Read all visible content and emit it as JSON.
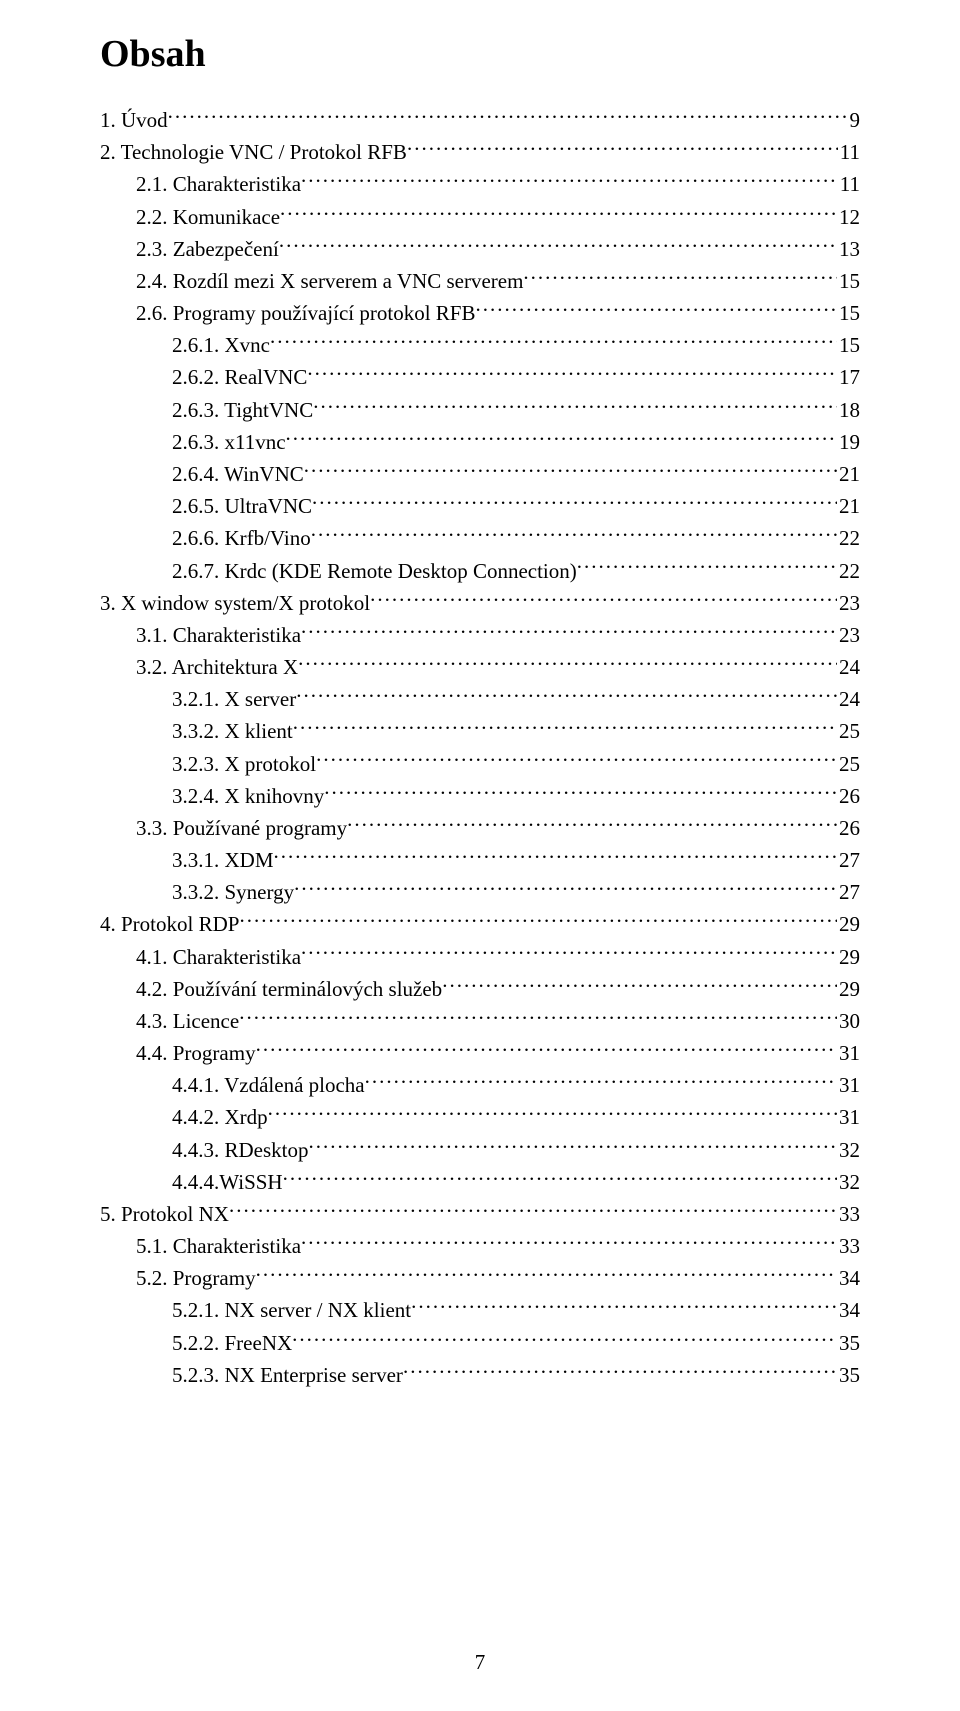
{
  "title": "Obsah",
  "footer_page_number": "7",
  "toc": [
    {
      "indent": 0,
      "label": "1. Úvod",
      "page": "9"
    },
    {
      "indent": 0,
      "label": "2. Technologie VNC / Protokol RFB",
      "page": "11"
    },
    {
      "indent": 1,
      "label": "2.1. Charakteristika",
      "page": "11"
    },
    {
      "indent": 1,
      "label": "2.2. Komunikace",
      "page": "12"
    },
    {
      "indent": 1,
      "label": "2.3. Zabezpečení",
      "page": "13"
    },
    {
      "indent": 1,
      "label": "2.4. Rozdíl mezi X serverem a VNC serverem",
      "page": "15"
    },
    {
      "indent": 1,
      "label": "2.6. Programy používající protokol RFB",
      "page": "15"
    },
    {
      "indent": 2,
      "label": "2.6.1. Xvnc",
      "page": "15"
    },
    {
      "indent": 2,
      "label": "2.6.2. RealVNC",
      "page": "17"
    },
    {
      "indent": 2,
      "label": "2.6.3. TightVNC",
      "page": "18"
    },
    {
      "indent": 2,
      "label": "2.6.3. x11vnc",
      "page": "19"
    },
    {
      "indent": 2,
      "label": "2.6.4. WinVNC",
      "page": "21"
    },
    {
      "indent": 2,
      "label": "2.6.5. UltraVNC",
      "page": "21"
    },
    {
      "indent": 2,
      "label": "2.6.6. Krfb/Vino",
      "page": "22"
    },
    {
      "indent": 2,
      "label": "2.6.7. Krdc (KDE Remote Desktop Connection)",
      "page": "22"
    },
    {
      "indent": 0,
      "label": "3. X window system/X protokol",
      "page": "23"
    },
    {
      "indent": 1,
      "label": "3.1. Charakteristika",
      "page": "23"
    },
    {
      "indent": 1,
      "label": "3.2. Architektura X",
      "page": "24"
    },
    {
      "indent": 2,
      "label": "3.2.1. X server",
      "page": "24"
    },
    {
      "indent": 2,
      "label": "3.3.2. X klient",
      "page": "25"
    },
    {
      "indent": 2,
      "label": "3.2.3. X protokol",
      "page": "25"
    },
    {
      "indent": 2,
      "label": "3.2.4. X knihovny",
      "page": "26"
    },
    {
      "indent": 1,
      "label": "3.3. Používané programy",
      "page": "26"
    },
    {
      "indent": 2,
      "label": "3.3.1. XDM",
      "page": "27"
    },
    {
      "indent": 2,
      "label": "3.3.2. Synergy",
      "page": "27"
    },
    {
      "indent": 0,
      "label": "4. Protokol RDP",
      "page": "29"
    },
    {
      "indent": 1,
      "label": "4.1. Charakteristika",
      "page": "29"
    },
    {
      "indent": 1,
      "label": "4.2. Používání terminálových služeb",
      "page": "29"
    },
    {
      "indent": 1,
      "label": "4.3. Licence",
      "page": "30"
    },
    {
      "indent": 1,
      "label": "4.4. Programy",
      "page": "31"
    },
    {
      "indent": 2,
      "label": "4.4.1. Vzdálená plocha",
      "page": "31"
    },
    {
      "indent": 2,
      "label": "4.4.2. Xrdp",
      "page": "31"
    },
    {
      "indent": 2,
      "label": "4.4.3. RDesktop",
      "page": "32"
    },
    {
      "indent": 2,
      "label": "4.4.4.WiSSH",
      "page": "32"
    },
    {
      "indent": 0,
      "label": "5. Protokol NX",
      "page": "33"
    },
    {
      "indent": 1,
      "label": "5.1. Charakteristika",
      "page": "33"
    },
    {
      "indent": 1,
      "label": "5.2. Programy",
      "page": "34"
    },
    {
      "indent": 2,
      "label": "5.2.1. NX server / NX klient",
      "page": "34"
    },
    {
      "indent": 2,
      "label": "5.2.2. FreeNX",
      "page": "35"
    },
    {
      "indent": 2,
      "label": "5.2.3. NX Enterprise server",
      "page": "35"
    }
  ]
}
